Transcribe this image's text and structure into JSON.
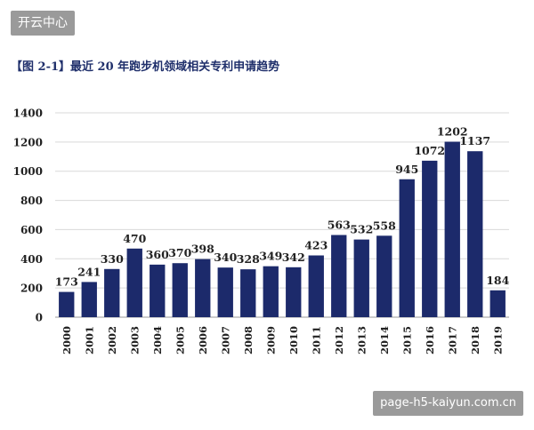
{
  "watermark_top": "开云中心",
  "watermark_bottom": "page-h5-kaiyun.com.cn",
  "chart_data": {
    "type": "bar",
    "title": "【图 2-1】最近 20 年跑步机领域相关专利申请趋势",
    "categories": [
      "2000",
      "2001",
      "2002",
      "2003",
      "2004",
      "2005",
      "2006",
      "2007",
      "2008",
      "2009",
      "2010",
      "2011",
      "2012",
      "2013",
      "2014",
      "2015",
      "2016",
      "2017",
      "2018",
      "2019"
    ],
    "values": [
      173,
      241,
      330,
      470,
      360,
      370,
      398,
      340,
      328,
      349,
      342,
      423,
      563,
      532,
      558,
      945,
      1072,
      1202,
      1137,
      184
    ],
    "ylim": [
      0,
      1400
    ],
    "yticks": [
      0,
      200,
      400,
      600,
      800,
      1000,
      1200,
      1400
    ],
    "grid": true,
    "bar_color": "#1c2a6b"
  }
}
